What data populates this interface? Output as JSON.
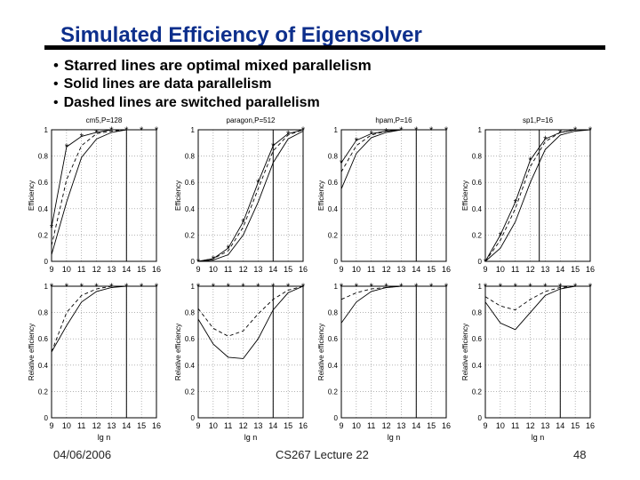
{
  "slide": {
    "title": "Simulated Efficiency of Eigensolver",
    "bullets": [
      "Starred lines are optimal mixed parallelism",
      "Solid lines are data parallelism",
      "Dashed lines are switched parallelism"
    ],
    "footer": {
      "date": "04/06/2006",
      "lecture": "CS267 Lecture 22",
      "page": "48"
    }
  },
  "chart_data": [
    {
      "type": "line",
      "title": "cm5,P=128",
      "xlabel": "",
      "ylabel": "Efficiency",
      "xlim": [
        9,
        16
      ],
      "ylim": [
        0,
        1
      ],
      "xticks": [
        9,
        10,
        11,
        12,
        13,
        14,
        15,
        16
      ],
      "yticks": [
        0,
        0.2,
        0.4,
        0.6,
        0.8,
        1
      ],
      "x": [
        9,
        10,
        11,
        12,
        13,
        14,
        15,
        16
      ],
      "series": [
        {
          "style": "starred",
          "values": [
            0.26,
            0.87,
            0.95,
            0.98,
            1.0,
            1.0,
            1.0,
            1.0
          ]
        },
        {
          "style": "solid",
          "values": [
            0.05,
            0.45,
            0.79,
            0.93,
            0.98,
            1.0,
            1.0,
            1.0
          ]
        },
        {
          "style": "dashed",
          "values": [
            0.12,
            0.62,
            0.88,
            0.97,
            0.99,
            1.0,
            1.0,
            1.0
          ]
        }
      ],
      "vline": 14
    },
    {
      "type": "line",
      "title": "paragon,P=512",
      "xlabel": "",
      "ylabel": "Efficiency",
      "xlim": [
        9,
        16
      ],
      "ylim": [
        0,
        1
      ],
      "xticks": [
        9,
        10,
        11,
        12,
        13,
        14,
        15,
        16
      ],
      "yticks": [
        0,
        0.2,
        0.4,
        0.6,
        0.8,
        1
      ],
      "x": [
        9,
        10,
        11,
        12,
        13,
        14,
        15,
        16
      ],
      "series": [
        {
          "style": "starred",
          "values": [
            0.0,
            0.02,
            0.1,
            0.3,
            0.6,
            0.88,
            0.97,
            1.0
          ]
        },
        {
          "style": "solid",
          "values": [
            0.0,
            0.01,
            0.05,
            0.2,
            0.45,
            0.75,
            0.93,
            0.99
          ]
        },
        {
          "style": "dashed",
          "values": [
            0.0,
            0.02,
            0.08,
            0.26,
            0.55,
            0.84,
            0.96,
            1.0
          ]
        }
      ],
      "vline": 14
    },
    {
      "type": "line",
      "title": "hpam,P=16",
      "xlabel": "",
      "ylabel": "Efficiency",
      "xlim": [
        9,
        16
      ],
      "ylim": [
        0,
        1
      ],
      "xticks": [
        9,
        10,
        11,
        12,
        13,
        14,
        15,
        16
      ],
      "yticks": [
        0,
        0.2,
        0.4,
        0.6,
        0.8,
        1
      ],
      "x": [
        9,
        10,
        11,
        12,
        13,
        14,
        15,
        16
      ],
      "series": [
        {
          "style": "starred",
          "values": [
            0.75,
            0.92,
            0.97,
            0.99,
            1.0,
            1.0,
            1.0,
            1.0
          ]
        },
        {
          "style": "solid",
          "values": [
            0.55,
            0.82,
            0.94,
            0.98,
            1.0,
            1.0,
            1.0,
            1.0
          ]
        },
        {
          "style": "dashed",
          "values": [
            0.68,
            0.88,
            0.96,
            0.99,
            1.0,
            1.0,
            1.0,
            1.0
          ]
        }
      ],
      "vline": 14
    },
    {
      "type": "line",
      "title": "sp1,P=16",
      "xlabel": "",
      "ylabel": "Efficiency",
      "xlim": [
        9,
        16
      ],
      "ylim": [
        0,
        1
      ],
      "xticks": [
        9,
        10,
        11,
        12,
        13,
        14,
        15,
        16
      ],
      "yticks": [
        0,
        0.2,
        0.4,
        0.6,
        0.8,
        1
      ],
      "x": [
        9,
        10,
        11,
        12,
        13,
        14,
        15,
        16
      ],
      "series": [
        {
          "style": "starred",
          "values": [
            0.0,
            0.2,
            0.45,
            0.77,
            0.93,
            0.98,
            1.0,
            1.0
          ]
        },
        {
          "style": "solid",
          "values": [
            0.0,
            0.1,
            0.3,
            0.6,
            0.85,
            0.96,
            0.99,
            1.0
          ]
        },
        {
          "style": "dashed",
          "values": [
            0.0,
            0.16,
            0.4,
            0.72,
            0.91,
            0.98,
            1.0,
            1.0
          ]
        }
      ],
      "vline": 12.6
    },
    {
      "type": "line",
      "title": "",
      "xlabel": "lg n",
      "ylabel": "Relative efficiency",
      "xlim": [
        9,
        16
      ],
      "ylim": [
        0,
        1
      ],
      "xticks": [
        9,
        10,
        11,
        12,
        13,
        14,
        15,
        16
      ],
      "yticks": [
        0,
        0.2,
        0.4,
        0.6,
        0.8,
        1
      ],
      "x": [
        9,
        10,
        11,
        12,
        13,
        14,
        15,
        16
      ],
      "series": [
        {
          "style": "starred",
          "values": [
            1,
            1,
            1,
            1,
            1,
            1,
            1,
            1
          ]
        },
        {
          "style": "solid",
          "values": [
            0.5,
            0.7,
            0.88,
            0.96,
            0.99,
            1.0,
            1.0,
            1.0
          ]
        },
        {
          "style": "dashed",
          "values": [
            0.5,
            0.8,
            0.93,
            0.98,
            1.0,
            1.0,
            1.0,
            1.0
          ]
        }
      ],
      "vline": 14
    },
    {
      "type": "line",
      "title": "",
      "xlabel": "lg n",
      "ylabel": "Relative efficiency",
      "xlim": [
        9,
        16
      ],
      "ylim": [
        0,
        1
      ],
      "xticks": [
        9,
        10,
        11,
        12,
        13,
        14,
        15,
        16
      ],
      "yticks": [
        0,
        0.2,
        0.4,
        0.6,
        0.8,
        1
      ],
      "x": [
        9,
        10,
        11,
        12,
        13,
        14,
        15,
        16
      ],
      "series": [
        {
          "style": "starred",
          "values": [
            1,
            1,
            1,
            1,
            1,
            1,
            1,
            1
          ]
        },
        {
          "style": "solid",
          "values": [
            0.75,
            0.56,
            0.46,
            0.45,
            0.6,
            0.82,
            0.95,
            1.0
          ]
        },
        {
          "style": "dashed",
          "values": [
            0.83,
            0.68,
            0.62,
            0.66,
            0.79,
            0.9,
            0.97,
            1.0
          ]
        }
      ],
      "vline": 14
    },
    {
      "type": "line",
      "title": "",
      "xlabel": "lg n",
      "ylabel": "Relative efficiency",
      "xlim": [
        9,
        16
      ],
      "ylim": [
        0,
        1
      ],
      "xticks": [
        9,
        10,
        11,
        12,
        13,
        14,
        15,
        16
      ],
      "yticks": [
        0,
        0.2,
        0.4,
        0.6,
        0.8,
        1
      ],
      "x": [
        9,
        10,
        11,
        12,
        13,
        14,
        15,
        16
      ],
      "series": [
        {
          "style": "starred",
          "values": [
            1,
            1,
            1,
            1,
            1,
            1,
            1,
            1
          ]
        },
        {
          "style": "solid",
          "values": [
            0.72,
            0.88,
            0.96,
            0.99,
            1.0,
            1.0,
            1.0,
            1.0
          ]
        },
        {
          "style": "dashed",
          "values": [
            0.9,
            0.95,
            0.98,
            0.99,
            1.0,
            1.0,
            1.0,
            1.0
          ]
        }
      ],
      "vline": 14
    },
    {
      "type": "line",
      "title": "",
      "xlabel": "lg n",
      "ylabel": "Relative efficiency",
      "xlim": [
        9,
        16
      ],
      "ylim": [
        0,
        1
      ],
      "xticks": [
        9,
        10,
        11,
        12,
        13,
        14,
        15,
        16
      ],
      "yticks": [
        0,
        0.2,
        0.4,
        0.6,
        0.8,
        1
      ],
      "x": [
        9,
        10,
        11,
        12,
        13,
        14,
        15,
        16
      ],
      "series": [
        {
          "style": "starred",
          "values": [
            1,
            1,
            1,
            1,
            1,
            1,
            1,
            1
          ]
        },
        {
          "style": "solid",
          "values": [
            0.88,
            0.72,
            0.67,
            0.8,
            0.93,
            0.98,
            1.0,
            1.0
          ]
        },
        {
          "style": "dashed",
          "values": [
            0.92,
            0.85,
            0.82,
            0.9,
            0.96,
            0.99,
            1.0,
            1.0
          ]
        }
      ],
      "vline": 14
    }
  ]
}
